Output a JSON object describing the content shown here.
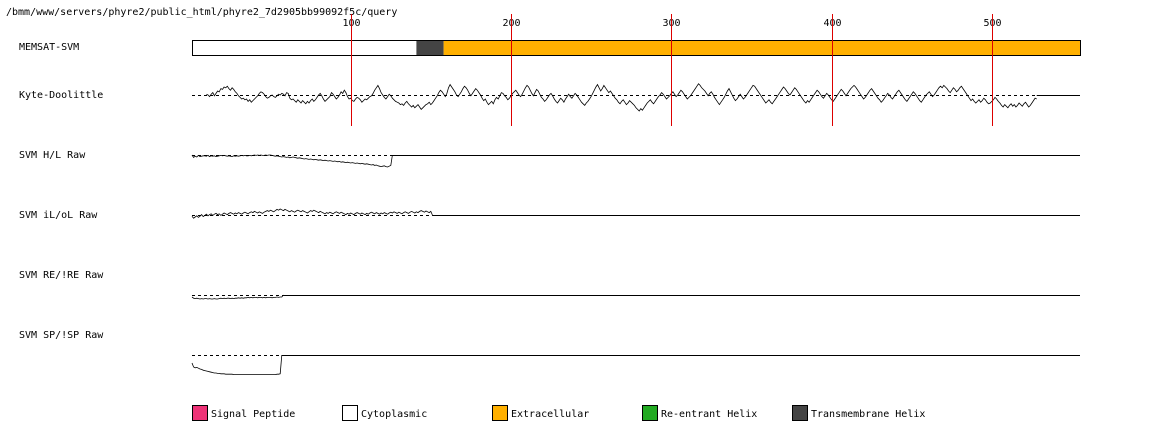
{
  "header_path": "/bmm/www/servers/phyre2/public_html/phyre2_7d2905bb99092f5c/query",
  "sequence_length": 555,
  "position_ticks": [
    100,
    200,
    300,
    400,
    500
  ],
  "colors": {
    "tick_line": "#dd0000",
    "signal_peptide": "#ee3377",
    "cytoplasmic": "#ffffff",
    "extracellular": "#ffb000",
    "reentrant_helix": "#22aa22",
    "transmembrane_helix": "#444444"
  },
  "tracks": [
    {
      "key": "memsat",
      "label": "MEMSAT-SVM"
    },
    {
      "key": "kd",
      "label": "Kyte-Doolittle"
    },
    {
      "key": "hl",
      "label": "SVM H/L Raw"
    },
    {
      "key": "ilol",
      "label": "SVM iL/oL Raw"
    },
    {
      "key": "reire",
      "label": "SVM RE/!RE Raw"
    },
    {
      "key": "spisp",
      "label": "SVM SP/!SP Raw"
    }
  ],
  "memsat_segments": [
    {
      "type": "cytoplasmic",
      "start": 1,
      "end": 140
    },
    {
      "type": "transmembrane_helix",
      "start": 141,
      "end": 157
    },
    {
      "type": "extracellular",
      "start": 158,
      "end": 555
    }
  ],
  "raw_scores": {
    "kd": [
      0.1,
      0.0,
      -0.2,
      0.1,
      0.3,
      -0.1,
      0.2,
      0.5,
      0.4,
      0.8,
      0.7,
      1.0,
      0.9,
      1.1,
      0.8,
      0.6,
      0.9,
      0.7,
      0.4,
      0.2,
      -0.1,
      -0.3,
      -0.5,
      -0.4,
      -0.6,
      -0.5,
      -0.8,
      -0.6,
      -0.9,
      -0.7,
      -0.5,
      -0.3,
      -0.1,
      0.2,
      0.4,
      0.3,
      0.1,
      -0.2,
      -0.4,
      -0.3,
      -0.1,
      0.0,
      -0.2,
      -0.3,
      -0.1,
      0.1,
      0.0,
      0.2,
      0.1,
      -0.1,
      0.3,
      0.2,
      -0.4,
      -0.6,
      -0.5,
      -0.7,
      -0.9,
      -0.6,
      -0.8,
      -1.0,
      -0.7,
      -0.9,
      -1.1,
      -0.8,
      -1.0,
      -0.7,
      -0.5,
      -0.8,
      -0.6,
      -0.3,
      0.0,
      0.2,
      -0.1,
      -0.5,
      -0.8,
      -0.6,
      -0.4,
      -0.2,
      0.3,
      0.1,
      -0.2,
      -0.5,
      -0.3,
      0.0,
      0.4,
      0.2,
      0.6,
      0.3,
      -0.2,
      -0.5,
      -0.4,
      -0.7,
      -0.8,
      -0.5,
      -0.3,
      -0.4,
      -0.6,
      -0.9,
      -0.7,
      -0.5,
      -0.6,
      -0.4,
      -0.2,
      -0.1,
      0.2,
      0.6,
      0.9,
      1.2,
      0.8,
      0.3,
      0.0,
      -0.3,
      -0.5,
      -0.2,
      0.1,
      -0.1,
      -0.4,
      -0.6,
      -0.8,
      -0.9,
      -1.0,
      -1.2,
      -1.1,
      -1.3,
      -1.0,
      -0.8,
      -1.1,
      -1.3,
      -1.5,
      -1.3,
      -1.6,
      -1.4,
      -1.2,
      -1.5,
      -1.8,
      -1.6,
      -1.4,
      -1.2,
      -1.1,
      -0.9,
      -1.2,
      -1.0,
      -0.7,
      -0.4,
      -0.1,
      0.3,
      0.6,
      0.4,
      0.1,
      -0.2,
      0.2,
      0.9,
      1.3,
      1.0,
      0.7,
      0.4,
      0.0,
      -0.2,
      0.1,
      0.4,
      0.8,
      1.1,
      0.9,
      0.6,
      0.2,
      -0.1,
      0.2,
      0.5,
      0.8,
      0.6,
      0.3,
      0.0,
      -0.4,
      -0.7,
      -0.5,
      -0.9,
      -1.2,
      -1.0,
      -0.8,
      -1.1,
      -0.6,
      -0.3,
      -0.5,
      -0.1,
      0.3,
      0.2,
      -0.1,
      -0.3,
      -0.6,
      -0.4,
      -0.1,
      0.2,
      0.4,
      0.6,
      0.3,
      0.0,
      -0.2,
      0.1,
      0.5,
      0.9,
      1.2,
      1.0,
      0.6,
      0.2,
      -0.1,
      0.3,
      0.7,
      0.5,
      0.1,
      -0.3,
      -0.5,
      -0.8,
      -0.6,
      -0.3,
      0.0,
      0.2,
      -0.1,
      -0.5,
      -0.8,
      -1.0,
      -0.7,
      -0.4,
      -0.6,
      -0.9,
      -0.5,
      -0.2,
      0.1,
      -0.2,
      -0.4,
      -0.1,
      0.2,
      0.0,
      -0.3,
      -0.6,
      -0.9,
      -1.1,
      -1.3,
      -1.0,
      -0.8,
      -0.5,
      -0.2,
      0.2,
      0.6,
      1.0,
      1.3,
      0.9,
      0.5,
      0.8,
      1.2,
      0.9,
      0.6,
      0.3,
      0.5,
      0.2,
      -0.1,
      -0.4,
      -0.6,
      -0.9,
      -1.1,
      -0.8,
      -0.6,
      -0.9,
      -1.2,
      -1.0,
      -0.7,
      -0.9,
      -1.1,
      -1.3,
      -1.6,
      -1.8,
      -2.0,
      -1.7,
      -1.9,
      -1.6,
      -1.3,
      -1.0,
      -0.8,
      -0.6,
      -0.9,
      -1.1,
      -0.8,
      -0.5,
      -0.2,
      0.0,
      0.3,
      0.1,
      -0.2,
      -0.5,
      -0.3,
      -0.1,
      0.2,
      0.4,
      0.1,
      -0.2,
      0.0,
      0.3,
      0.6,
      0.4,
      0.1,
      -0.2,
      -0.5,
      -0.3,
      -0.1,
      0.2,
      0.5,
      0.8,
      1.1,
      1.4,
      1.2,
      0.9,
      0.7,
      0.5,
      0.2,
      -0.1,
      0.2,
      0.4,
      0.1,
      -0.3,
      -0.6,
      -0.9,
      -1.2,
      -0.9,
      -0.6,
      -0.3,
      0.1,
      0.5,
      0.8,
      0.4,
      0.0,
      -0.4,
      -0.7,
      -0.5,
      -0.2,
      0.1,
      -0.2,
      -0.5,
      -0.3,
      0.0,
      0.3,
      0.6,
      0.9,
      1.2,
      1.1,
      0.8,
      0.5,
      0.2,
      -0.1,
      -0.4,
      -0.7,
      -1.0,
      -0.8,
      -0.6,
      -0.9,
      -1.1,
      -0.8,
      -0.5,
      -0.2,
      0.1,
      0.4,
      0.7,
      1.0,
      0.8,
      0.5,
      0.2,
      0.0,
      0.3,
      0.6,
      0.9,
      0.7,
      0.4,
      0.1,
      -0.2,
      -0.5,
      -0.8,
      -1.0,
      -0.7,
      -0.9,
      -0.6,
      -0.3,
      0.0,
      0.3,
      0.6,
      0.4,
      0.1,
      -0.2,
      -0.4,
      -0.1,
      0.2,
      0.0,
      -0.3,
      -0.6,
      -0.8,
      -0.5,
      -0.2,
      0.1,
      0.4,
      0.7,
      0.5,
      0.2,
      -0.1,
      0.2,
      0.5,
      0.8,
      1.0,
      1.2,
      1.0,
      0.7,
      0.4,
      0.1,
      -0.2,
      -0.5,
      -0.3,
      0.0,
      0.3,
      0.6,
      0.8,
      0.5,
      0.2,
      -0.1,
      -0.4,
      -0.6,
      -0.9,
      -0.7,
      -0.4,
      -0.1,
      0.2,
      0.0,
      -0.3,
      -0.5,
      -0.2,
      0.1,
      0.4,
      0.6,
      0.3,
      0.0,
      -0.3,
      -0.6,
      -0.8,
      -0.5,
      -0.2,
      0.1,
      0.4,
      0.2,
      -0.1,
      -0.4,
      -0.7,
      -0.9,
      -0.6,
      -0.3,
      0.0,
      0.2,
      0.4,
      0.1,
      -0.2,
      0.0,
      0.3,
      0.6,
      0.9,
      1.1,
      0.9,
      1.2,
      1.0,
      0.8,
      0.5,
      0.3,
      0.6,
      0.9,
      0.7,
      0.4,
      0.6,
      0.9,
      1.1,
      0.8,
      0.5,
      0.2,
      -0.1,
      -0.4,
      -0.7,
      -0.5,
      -0.8,
      -1.0,
      -0.8,
      -0.6,
      -0.9,
      -0.7,
      -0.4,
      -0.6,
      -0.9,
      -1.1,
      -1.0,
      -0.8,
      -0.6,
      -0.3,
      -0.5,
      -0.8,
      -1.0,
      -1.3,
      -1.5,
      -1.2,
      -1.4,
      -1.6,
      -1.3,
      -1.1,
      -1.4,
      -1.2,
      -1.5,
      -1.3,
      -1.0,
      -1.2,
      -1.4,
      -1.1,
      -0.9,
      -1.2,
      -1.5,
      -1.3,
      -1.0,
      -0.7,
      -0.4,
      -0.5
    ],
    "hl": [
      0.0,
      -0.6,
      -0.3,
      -0.5,
      -0.1,
      -0.4,
      -0.3,
      -0.2,
      -0.2,
      -0.3,
      -0.1,
      -0.4,
      -0.2,
      -0.3,
      -0.2,
      -0.4,
      -0.3,
      -0.2,
      -0.1,
      -0.2,
      -0.1,
      -0.2,
      -0.3,
      -0.2,
      -0.3,
      -0.4,
      -0.2,
      -0.3,
      -0.2,
      -0.3,
      -0.2,
      -0.1,
      -0.2,
      -0.1,
      -0.2,
      -0.2,
      -0.1,
      -0.2,
      -0.1,
      0.0,
      -0.1,
      0.0,
      -0.1,
      0.0,
      -0.1,
      -0.1,
      0.0,
      -0.1,
      0.0,
      0.0,
      -0.1,
      -0.2,
      -0.3,
      -0.2,
      -0.3,
      -0.4,
      -0.5,
      -0.4,
      -0.5,
      -0.6,
      -0.5,
      -0.7,
      -0.6,
      -0.5,
      -0.6,
      -0.7,
      -0.8,
      -0.7,
      -0.8,
      -0.9,
      -1.0,
      -0.9,
      -1.0,
      -1.1,
      -1.0,
      -1.1,
      -1.2,
      -1.1,
      -1.2,
      -1.3,
      -1.2,
      -1.3,
      -1.4,
      -1.3,
      -1.4,
      -1.5,
      -1.4,
      -1.5,
      -1.6,
      -1.5,
      -1.6,
      -1.7,
      -1.6,
      -1.8,
      -1.7,
      -1.8,
      -1.9,
      -1.8,
      -1.9,
      -2.0,
      -1.9,
      -2.0,
      -2.1,
      -2.0,
      -2.1,
      -2.2,
      -2.1,
      -2.2,
      -2.3,
      -2.2,
      -2.3,
      -2.4,
      -2.5,
      -2.4,
      -2.6,
      -2.5,
      -2.7,
      -2.8,
      -2.9,
      -2.8,
      -2.7,
      -2.9,
      -3.0,
      -2.8,
      -2.6,
      0.0
    ],
    "ilol": [
      -0.3,
      -0.8,
      -0.5,
      -0.2,
      -0.6,
      -0.3,
      0.1,
      -0.4,
      -0.1,
      0.2,
      -0.2,
      0.1,
      0.3,
      -0.1,
      0.2,
      0.4,
      0.1,
      0.3,
      -0.1,
      0.2,
      0.5,
      0.3,
      0.1,
      0.4,
      0.6,
      0.4,
      0.2,
      0.5,
      0.3,
      0.6,
      0.4,
      0.2,
      0.5,
      0.7,
      0.5,
      0.3,
      0.6,
      0.8,
      0.6,
      0.9,
      0.7,
      0.5,
      0.8,
      0.6,
      0.4,
      0.7,
      0.9,
      1.1,
      0.9,
      1.2,
      1.0,
      0.8,
      1.1,
      1.4,
      1.2,
      1.5,
      1.3,
      1.1,
      1.4,
      1.2,
      1.0,
      0.8,
      1.1,
      0.9,
      0.7,
      1.0,
      1.2,
      1.0,
      0.8,
      1.1,
      0.9,
      0.7,
      0.5,
      0.8,
      1.1,
      0.9,
      1.2,
      1.0,
      0.8,
      0.6,
      0.9,
      0.7,
      0.5,
      0.3,
      0.6,
      0.4,
      0.7,
      0.5,
      0.3,
      0.6,
      0.8,
      0.6,
      0.4,
      0.7,
      0.5,
      0.3,
      0.1,
      0.4,
      0.2,
      0.5,
      0.3,
      0.1,
      0.4,
      0.6,
      0.4,
      0.2,
      0.5,
      0.3,
      0.1,
      0.4,
      0.2,
      0.5,
      0.7,
      0.5,
      0.3,
      0.6,
      0.4,
      0.2,
      0.5,
      0.3,
      0.6,
      0.4,
      0.2,
      0.5,
      0.7,
      0.5,
      0.8,
      0.6,
      0.4,
      0.7,
      0.5,
      0.3,
      0.6,
      0.8,
      0.6,
      0.4,
      0.7,
      0.9,
      0.7,
      0.5,
      0.8,
      0.6,
      0.9,
      1.1,
      0.9,
      0.7,
      1.0,
      0.8,
      0.6,
      0.9,
      0.0
    ],
    "reire": [
      -0.5,
      -0.8,
      -0.9,
      -0.8,
      -0.9,
      -1.0,
      -0.9,
      -1.0,
      -0.9,
      -0.9,
      -1.0,
      -0.9,
      -1.0,
      -1.0,
      -0.9,
      -1.0,
      -1.0,
      -0.9,
      -0.8,
      -0.9,
      -0.8,
      -0.9,
      -0.8,
      -0.8,
      -0.9,
      -0.8,
      -0.9,
      -0.8,
      -0.8,
      -0.7,
      -0.8,
      -0.7,
      -0.8,
      -0.7,
      -0.7,
      -0.6,
      -0.7,
      -0.6,
      -0.7,
      -0.6,
      -0.6,
      -0.7,
      -0.6,
      -0.6,
      -0.7,
      -0.6,
      -0.7,
      -0.6,
      -0.6,
      -0.6,
      -0.7,
      -0.6,
      -0.6,
      -0.5,
      -0.6,
      -0.5,
      -0.5,
      0.0
    ],
    "spisp": [
      -2.0,
      -3.0,
      -3.2,
      -3.1,
      -3.3,
      -3.5,
      -3.6,
      -3.8,
      -3.9,
      -4.0,
      -4.1,
      -4.2,
      -4.3,
      -4.4,
      -4.5,
      -4.5,
      -4.6,
      -4.6,
      -4.7,
      -4.7,
      -4.7,
      -4.8,
      -4.8,
      -4.8,
      -4.8,
      -4.8,
      -4.9,
      -4.9,
      -4.9,
      -4.9,
      -4.9,
      -4.9,
      -4.9,
      -4.9,
      -4.9,
      -4.9,
      -4.9,
      -4.9,
      -4.9,
      -4.9,
      -4.9,
      -4.9,
      -4.9,
      -4.9,
      -4.9,
      -4.9,
      -4.9,
      -4.9,
      -4.9,
      -4.9,
      -4.9,
      -4.9,
      -4.9,
      -4.8,
      -4.8,
      -4.7,
      0.0
    ]
  },
  "legend": [
    {
      "key": "signal_peptide",
      "label": "Signal Peptide"
    },
    {
      "key": "cytoplasmic",
      "label": "Cytoplasmic"
    },
    {
      "key": "extracellular",
      "label": "Extracellular"
    },
    {
      "key": "reentrant_helix",
      "label": "Re-entrant Helix"
    },
    {
      "key": "transmembrane_helix",
      "label": "Transmembrane Helix"
    }
  ]
}
